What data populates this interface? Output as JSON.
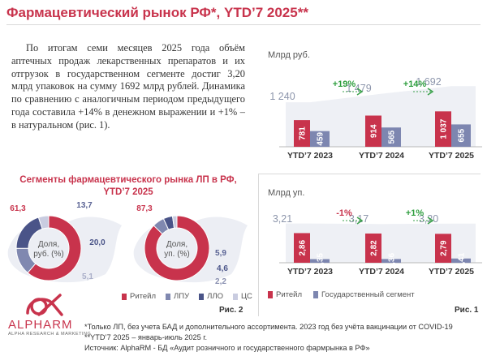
{
  "title": "Фармацевтический рынок РФ*, YTD’7 2025**",
  "intro_text": "По итогам семи месяцев 2025 года объём аптечных продаж лекарственных препаратов и их отгрузок в государственном сегменте достиг 3,20 млрд упаковок на сумму 1692 млрд рублей. Динамика по сравнению с аналогичным периодом предыдущего года составила +14% в денежном выражении и +1% – в натуральном (рис. 1).",
  "segments_title": "Сегменты фармацевтического рынка ЛП в РФ, YTD’7 2025",
  "donut_legend": [
    {
      "label": "Ритейл",
      "color": "#c8334c"
    },
    {
      "label": "ЛПУ",
      "color": "#8088b0"
    },
    {
      "label": "ЛЛО",
      "color": "#4a5488"
    },
    {
      "label": "ЦС",
      "color": "#c9cce0"
    }
  ],
  "fig2_label": "Рис. 2",
  "fig1_label": "Рис. 1",
  "bars_legend": [
    {
      "label": "Ритейл",
      "color": "#c8334c"
    },
    {
      "label": "Государственный сегмент",
      "color": "#7d86b0"
    }
  ],
  "chart_data": [
    {
      "type": "bar",
      "ylabel": "Млрд руб.",
      "categories": [
        "YTD’7 2023",
        "YTD’7 2024",
        "YTD’7 2025"
      ],
      "series": [
        {
          "name": "Ритейл",
          "values": [
            781,
            914,
            1037
          ],
          "labels": [
            "781",
            "914",
            "1 037"
          ]
        },
        {
          "name": "Государственный сегмент",
          "values": [
            459,
            565,
            655
          ],
          "labels": [
            "459",
            "565",
            "655"
          ]
        }
      ],
      "totals": [
        1240,
        1479,
        1692
      ],
      "total_labels": [
        "1 240",
        "1 479",
        "1 692"
      ],
      "growth": [
        "+19%",
        "+14%"
      ],
      "growth_colors": [
        "#2e9e3e",
        "#2e9e3e"
      ],
      "ylim": [
        0,
        1900
      ]
    },
    {
      "type": "bar",
      "ylabel": "Млрд уп.",
      "categories": [
        "YTD’7 2023",
        "YTD’7 2024",
        "YTD’7 2025"
      ],
      "series": [
        {
          "name": "Ритейл",
          "values": [
            2.86,
            2.82,
            2.79
          ],
          "labels": [
            "2,86",
            "2,82",
            "2,79"
          ]
        },
        {
          "name": "Государственный сегмент",
          "values": [
            0.35,
            0.36,
            0.41
          ],
          "labels": [
            "0,35",
            "0,36",
            "0,41"
          ]
        }
      ],
      "totals": [
        3.21,
        3.17,
        3.2
      ],
      "total_labels": [
        "3,21",
        "3,17",
        "3,20"
      ],
      "growth": [
        "-1%",
        "+1%"
      ],
      "growth_colors": [
        "#c8334c",
        "#2e9e3e"
      ],
      "ylim": [
        0,
        3.6
      ]
    },
    {
      "type": "pie",
      "center_label": "Доля, руб. (%)",
      "labels": [
        "Ритейл",
        "ЛПУ",
        "ЛЛО",
        "ЦС"
      ],
      "values": [
        61.3,
        13.7,
        20.0,
        5.1
      ],
      "value_labels": [
        "61,3",
        "13,7",
        "20,0",
        "5,1"
      ]
    },
    {
      "type": "pie",
      "center_label": "Доля, уп. (%)",
      "labels": [
        "Ритейл",
        "ЛПУ",
        "ЛЛО",
        "ЦС"
      ],
      "values": [
        87.3,
        5.9,
        4.6,
        2.2
      ],
      "value_labels": [
        "87,3",
        "5,9",
        "4,6",
        "2,2"
      ]
    }
  ],
  "logo": {
    "name": "ALPHARM",
    "sub": "ALPHA RESEARCH & MARKETING"
  },
  "footnotes": [
    "*Только ЛП, без учета БАД и дополнительного ассортимента. 2023 год без учёта вакцинации от COVID-19",
    "**YTD’7 2025 – январь-июль 2025 г.",
    "Источник: AlphaRM - БД «Аудит розничного и государственного фармрынка в РФ»"
  ]
}
